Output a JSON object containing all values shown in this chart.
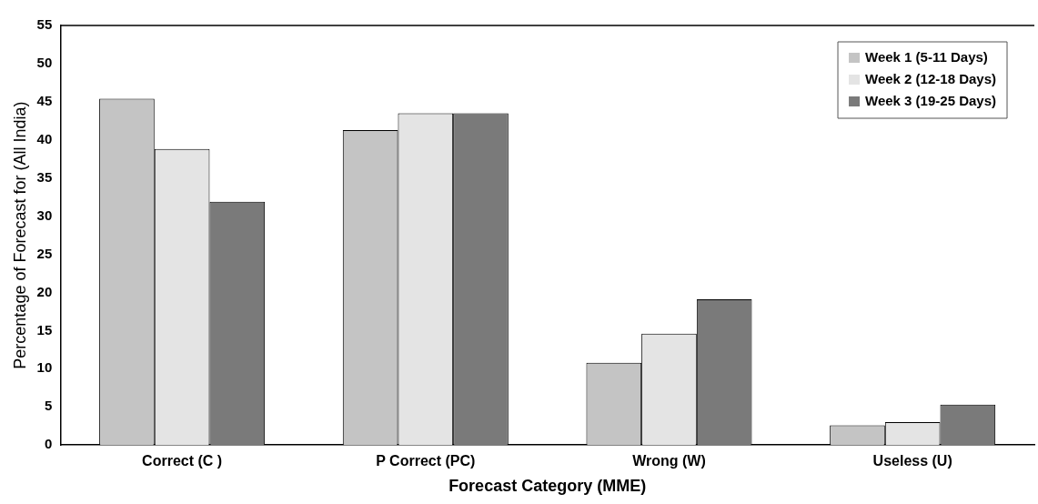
{
  "chart_data": {
    "type": "bar",
    "xlabel": "Forecast Category (MME)",
    "ylabel": "Percentage of Forecast for (All India)",
    "categories": [
      "Correct (C )",
      "P Correct (PC)",
      "Wrong (W)",
      "Useless (U)"
    ],
    "series": [
      {
        "name": "Week 1 (5-11 Days)",
        "color": "#c4c4c4",
        "values": [
          45.4,
          41.3,
          10.8,
          2.6
        ]
      },
      {
        "name": "Week 2 (12-18 Days)",
        "color": "#e4e4e4",
        "values": [
          38.8,
          43.5,
          14.6,
          3.0
        ]
      },
      {
        "name": "Week 3 (19-25 Days)",
        "color": "#7a7a7a",
        "values": [
          31.9,
          43.5,
          19.1,
          5.3
        ]
      }
    ],
    "ylim": [
      0,
      55
    ],
    "yticks": [
      0,
      5,
      10,
      15,
      20,
      25,
      30,
      35,
      40,
      45,
      50,
      55
    ],
    "grid": false,
    "legend": "top right"
  }
}
